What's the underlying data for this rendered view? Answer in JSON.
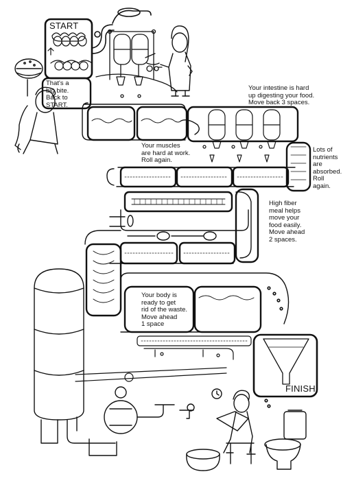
{
  "board": {
    "start_label": "START",
    "finish_label": "FINISH",
    "spaces": [
      {
        "id": "big-bite",
        "text": "That's a\nbig bite.\nBack to\nSTART."
      },
      {
        "id": "intestine-hard",
        "text": "Your intestine is hard\nup digesting your food.\nMove back 3 spaces."
      },
      {
        "id": "muscles",
        "text": "Your muscles\nare hard at work.\nRoll again."
      },
      {
        "id": "nutrients",
        "text": "Lots of\nnutrients\nare\nabsorbed.\nRoll\nagain."
      },
      {
        "id": "high-fiber",
        "text": "High fiber\nmeal helps\nmove your\nfood easily.\nMove ahead\n2 spaces."
      },
      {
        "id": "waste",
        "text": "Your body is\nready to get\nrid of the waste.\nMove ahead\n1 space"
      }
    ]
  },
  "colors": {
    "ink": "#111111",
    "paper": "#ffffff"
  }
}
